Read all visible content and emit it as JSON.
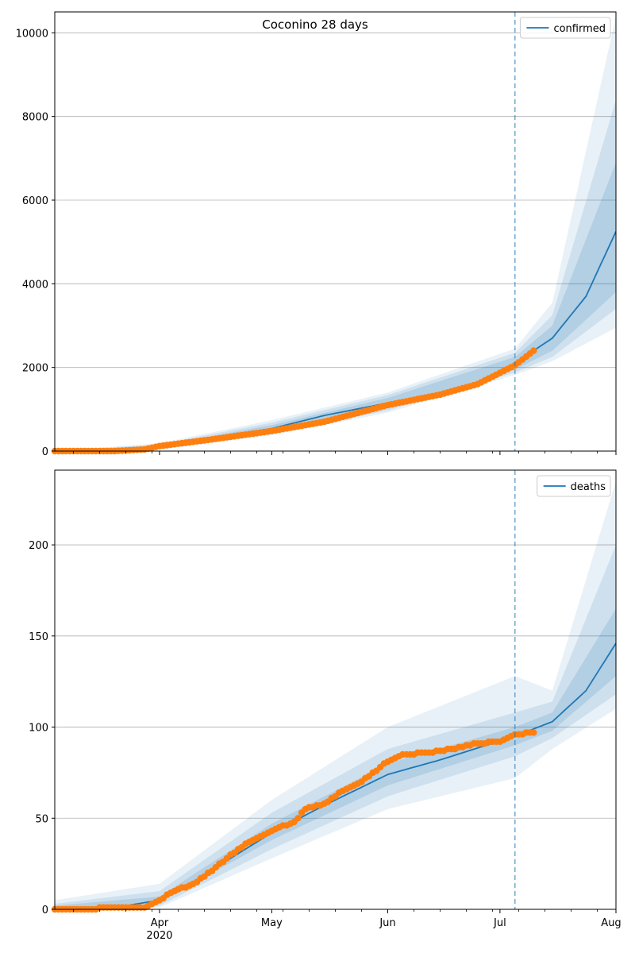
{
  "figure": {
    "title": "Coconino 28 days"
  },
  "chart_data": [
    {
      "type": "line",
      "title": "Coconino 28 days",
      "series_name": "confirmed",
      "xlabel": "",
      "ylabel": "",
      "x_range": [
        "2020-03-04",
        "2020-08-01"
      ],
      "ylim": [
        0,
        10500
      ],
      "yticks": [
        0,
        2000,
        4000,
        6000,
        8000,
        10000
      ],
      "grid": "horizontal",
      "legend": "top-right",
      "forecast_start": "2020-07-05",
      "colors": {
        "model": "#1f77b4",
        "observed": "#ff7f0e",
        "band": "#1f77b4"
      },
      "observed": {
        "start": "2020-03-04",
        "end": "2020-07-10",
        "anchors": [
          [
            "2020-03-04",
            0
          ],
          [
            "2020-03-20",
            0
          ],
          [
            "2020-03-28",
            40
          ],
          [
            "2020-04-01",
            120
          ],
          [
            "2020-04-15",
            280
          ],
          [
            "2020-05-01",
            480
          ],
          [
            "2020-05-15",
            700
          ],
          [
            "2020-06-01",
            1100
          ],
          [
            "2020-06-15",
            1350
          ],
          [
            "2020-06-25",
            1600
          ],
          [
            "2020-07-05",
            2050
          ],
          [
            "2020-07-10",
            2400
          ]
        ]
      },
      "model": {
        "median": [
          [
            "2020-03-04",
            0
          ],
          [
            "2020-03-20",
            10
          ],
          [
            "2020-04-01",
            100
          ],
          [
            "2020-04-15",
            280
          ],
          [
            "2020-05-01",
            540
          ],
          [
            "2020-05-15",
            850
          ],
          [
            "2020-06-01",
            1150
          ],
          [
            "2020-06-15",
            1350
          ],
          [
            "2020-06-25",
            1650
          ],
          [
            "2020-07-05",
            2100
          ],
          [
            "2020-07-15",
            2700
          ],
          [
            "2020-07-24",
            3700
          ],
          [
            "2020-08-01",
            5250
          ]
        ],
        "band_inner_low": [
          [
            "2020-03-04",
            0
          ],
          [
            "2020-04-01",
            70
          ],
          [
            "2020-05-01",
            460
          ],
          [
            "2020-06-01",
            1030
          ],
          [
            "2020-07-05",
            1950
          ],
          [
            "2020-07-15",
            2400
          ],
          [
            "2020-08-01",
            3800
          ]
        ],
        "band_inner_high": [
          [
            "2020-03-04",
            0
          ],
          [
            "2020-04-01",
            130
          ],
          [
            "2020-05-01",
            620
          ],
          [
            "2020-06-01",
            1270
          ],
          [
            "2020-07-05",
            2250
          ],
          [
            "2020-07-15",
            3000
          ],
          [
            "2020-08-01",
            6900
          ]
        ],
        "band_mid_low": [
          [
            "2020-03-04",
            0
          ],
          [
            "2020-04-01",
            50
          ],
          [
            "2020-05-01",
            420
          ],
          [
            "2020-06-01",
            970
          ],
          [
            "2020-07-05",
            1880
          ],
          [
            "2020-07-15",
            2250
          ],
          [
            "2020-08-01",
            3400
          ]
        ],
        "band_mid_high": [
          [
            "2020-03-04",
            0
          ],
          [
            "2020-04-01",
            160
          ],
          [
            "2020-05-01",
            680
          ],
          [
            "2020-06-01",
            1340
          ],
          [
            "2020-07-05",
            2350
          ],
          [
            "2020-07-15",
            3250
          ],
          [
            "2020-08-01",
            8400
          ]
        ],
        "band_outer_low": [
          [
            "2020-03-04",
            0
          ],
          [
            "2020-04-01",
            30
          ],
          [
            "2020-05-01",
            380
          ],
          [
            "2020-06-01",
            920
          ],
          [
            "2020-07-05",
            1820
          ],
          [
            "2020-07-15",
            2150
          ],
          [
            "2020-08-01",
            2950
          ]
        ],
        "band_outer_high": [
          [
            "2020-03-04",
            0
          ],
          [
            "2020-04-01",
            190
          ],
          [
            "2020-05-01",
            740
          ],
          [
            "2020-06-01",
            1400
          ],
          [
            "2020-07-05",
            2450
          ],
          [
            "2020-07-15",
            3550
          ],
          [
            "2020-08-01",
            10400
          ]
        ]
      }
    },
    {
      "type": "line",
      "title": "",
      "series_name": "deaths",
      "xlabel": "",
      "ylabel": "",
      "x_range": [
        "2020-03-04",
        "2020-08-01"
      ],
      "x_ticks": [
        {
          "date": "2020-04-01",
          "label": "Apr",
          "sublabel": "2020"
        },
        {
          "date": "2020-05-01",
          "label": "May"
        },
        {
          "date": "2020-06-01",
          "label": "Jun"
        },
        {
          "date": "2020-07-01",
          "label": "Jul"
        },
        {
          "date": "2020-08-01",
          "label": "Aug"
        }
      ],
      "ylim": [
        0,
        241
      ],
      "yticks": [
        0,
        50,
        100,
        150,
        200
      ],
      "grid": "horizontal",
      "legend": "top-right",
      "forecast_start": "2020-07-05",
      "colors": {
        "model": "#1f77b4",
        "observed": "#ff7f0e",
        "band": "#1f77b4"
      },
      "observed": {
        "start": "2020-03-04",
        "end": "2020-07-10",
        "anchors": [
          [
            "2020-03-04",
            0
          ],
          [
            "2020-03-28",
            1
          ],
          [
            "2020-04-01",
            5
          ],
          [
            "2020-04-05",
            10
          ],
          [
            "2020-04-10",
            14
          ],
          [
            "2020-04-15",
            21
          ],
          [
            "2020-04-20",
            30
          ],
          [
            "2020-04-25",
            37
          ],
          [
            "2020-05-01",
            43
          ],
          [
            "2020-05-07",
            48
          ],
          [
            "2020-05-10",
            55
          ],
          [
            "2020-05-15",
            58
          ],
          [
            "2020-05-20",
            65
          ],
          [
            "2020-05-25",
            70
          ],
          [
            "2020-05-30",
            78
          ],
          [
            "2020-06-01",
            81
          ],
          [
            "2020-06-05",
            85
          ],
          [
            "2020-06-12",
            86
          ],
          [
            "2020-06-18",
            88
          ],
          [
            "2020-06-25",
            91
          ],
          [
            "2020-07-01",
            92
          ],
          [
            "2020-07-05",
            96
          ],
          [
            "2020-07-10",
            97
          ]
        ]
      },
      "model": {
        "median": [
          [
            "2020-03-04",
            0
          ],
          [
            "2020-03-20",
            1
          ],
          [
            "2020-04-01",
            5
          ],
          [
            "2020-04-10",
            15
          ],
          [
            "2020-04-20",
            28
          ],
          [
            "2020-05-01",
            42
          ],
          [
            "2020-05-15",
            57
          ],
          [
            "2020-06-01",
            74
          ],
          [
            "2020-06-15",
            82
          ],
          [
            "2020-07-05",
            95
          ],
          [
            "2020-07-15",
            103
          ],
          [
            "2020-07-24",
            120
          ],
          [
            "2020-08-01",
            146
          ]
        ],
        "band_inner_low": [
          [
            "2020-03-04",
            0
          ],
          [
            "2020-04-01",
            4
          ],
          [
            "2020-05-01",
            38
          ],
          [
            "2020-06-01",
            68
          ],
          [
            "2020-07-05",
            90
          ],
          [
            "2020-07-15",
            98
          ],
          [
            "2020-08-01",
            128
          ]
        ],
        "band_inner_high": [
          [
            "2020-03-04",
            2
          ],
          [
            "2020-04-01",
            7
          ],
          [
            "2020-05-01",
            47
          ],
          [
            "2020-06-01",
            80
          ],
          [
            "2020-07-05",
            100
          ],
          [
            "2020-07-15",
            108
          ],
          [
            "2020-08-01",
            165
          ]
        ],
        "band_mid_low": [
          [
            "2020-03-04",
            0
          ],
          [
            "2020-04-01",
            2
          ],
          [
            "2020-05-01",
            33
          ],
          [
            "2020-06-01",
            62
          ],
          [
            "2020-07-05",
            84
          ],
          [
            "2020-07-15",
            94
          ],
          [
            "2020-08-01",
            118
          ]
        ],
        "band_mid_high": [
          [
            "2020-03-04",
            3
          ],
          [
            "2020-04-01",
            10
          ],
          [
            "2020-05-01",
            53
          ],
          [
            "2020-06-01",
            88
          ],
          [
            "2020-07-05",
            108
          ],
          [
            "2020-07-15",
            114
          ],
          [
            "2020-08-01",
            200
          ]
        ],
        "band_outer_low": [
          [
            "2020-03-04",
            0
          ],
          [
            "2020-04-01",
            1
          ],
          [
            "2020-05-01",
            28
          ],
          [
            "2020-06-01",
            55
          ],
          [
            "2020-07-05",
            72
          ],
          [
            "2020-07-15",
            88
          ],
          [
            "2020-08-01",
            110
          ]
        ],
        "band_outer_high": [
          [
            "2020-03-04",
            5
          ],
          [
            "2020-04-01",
            14
          ],
          [
            "2020-05-01",
            60
          ],
          [
            "2020-06-01",
            100
          ],
          [
            "2020-07-05",
            128
          ],
          [
            "2020-07-15",
            120
          ],
          [
            "2020-08-01",
            235
          ]
        ]
      }
    }
  ]
}
